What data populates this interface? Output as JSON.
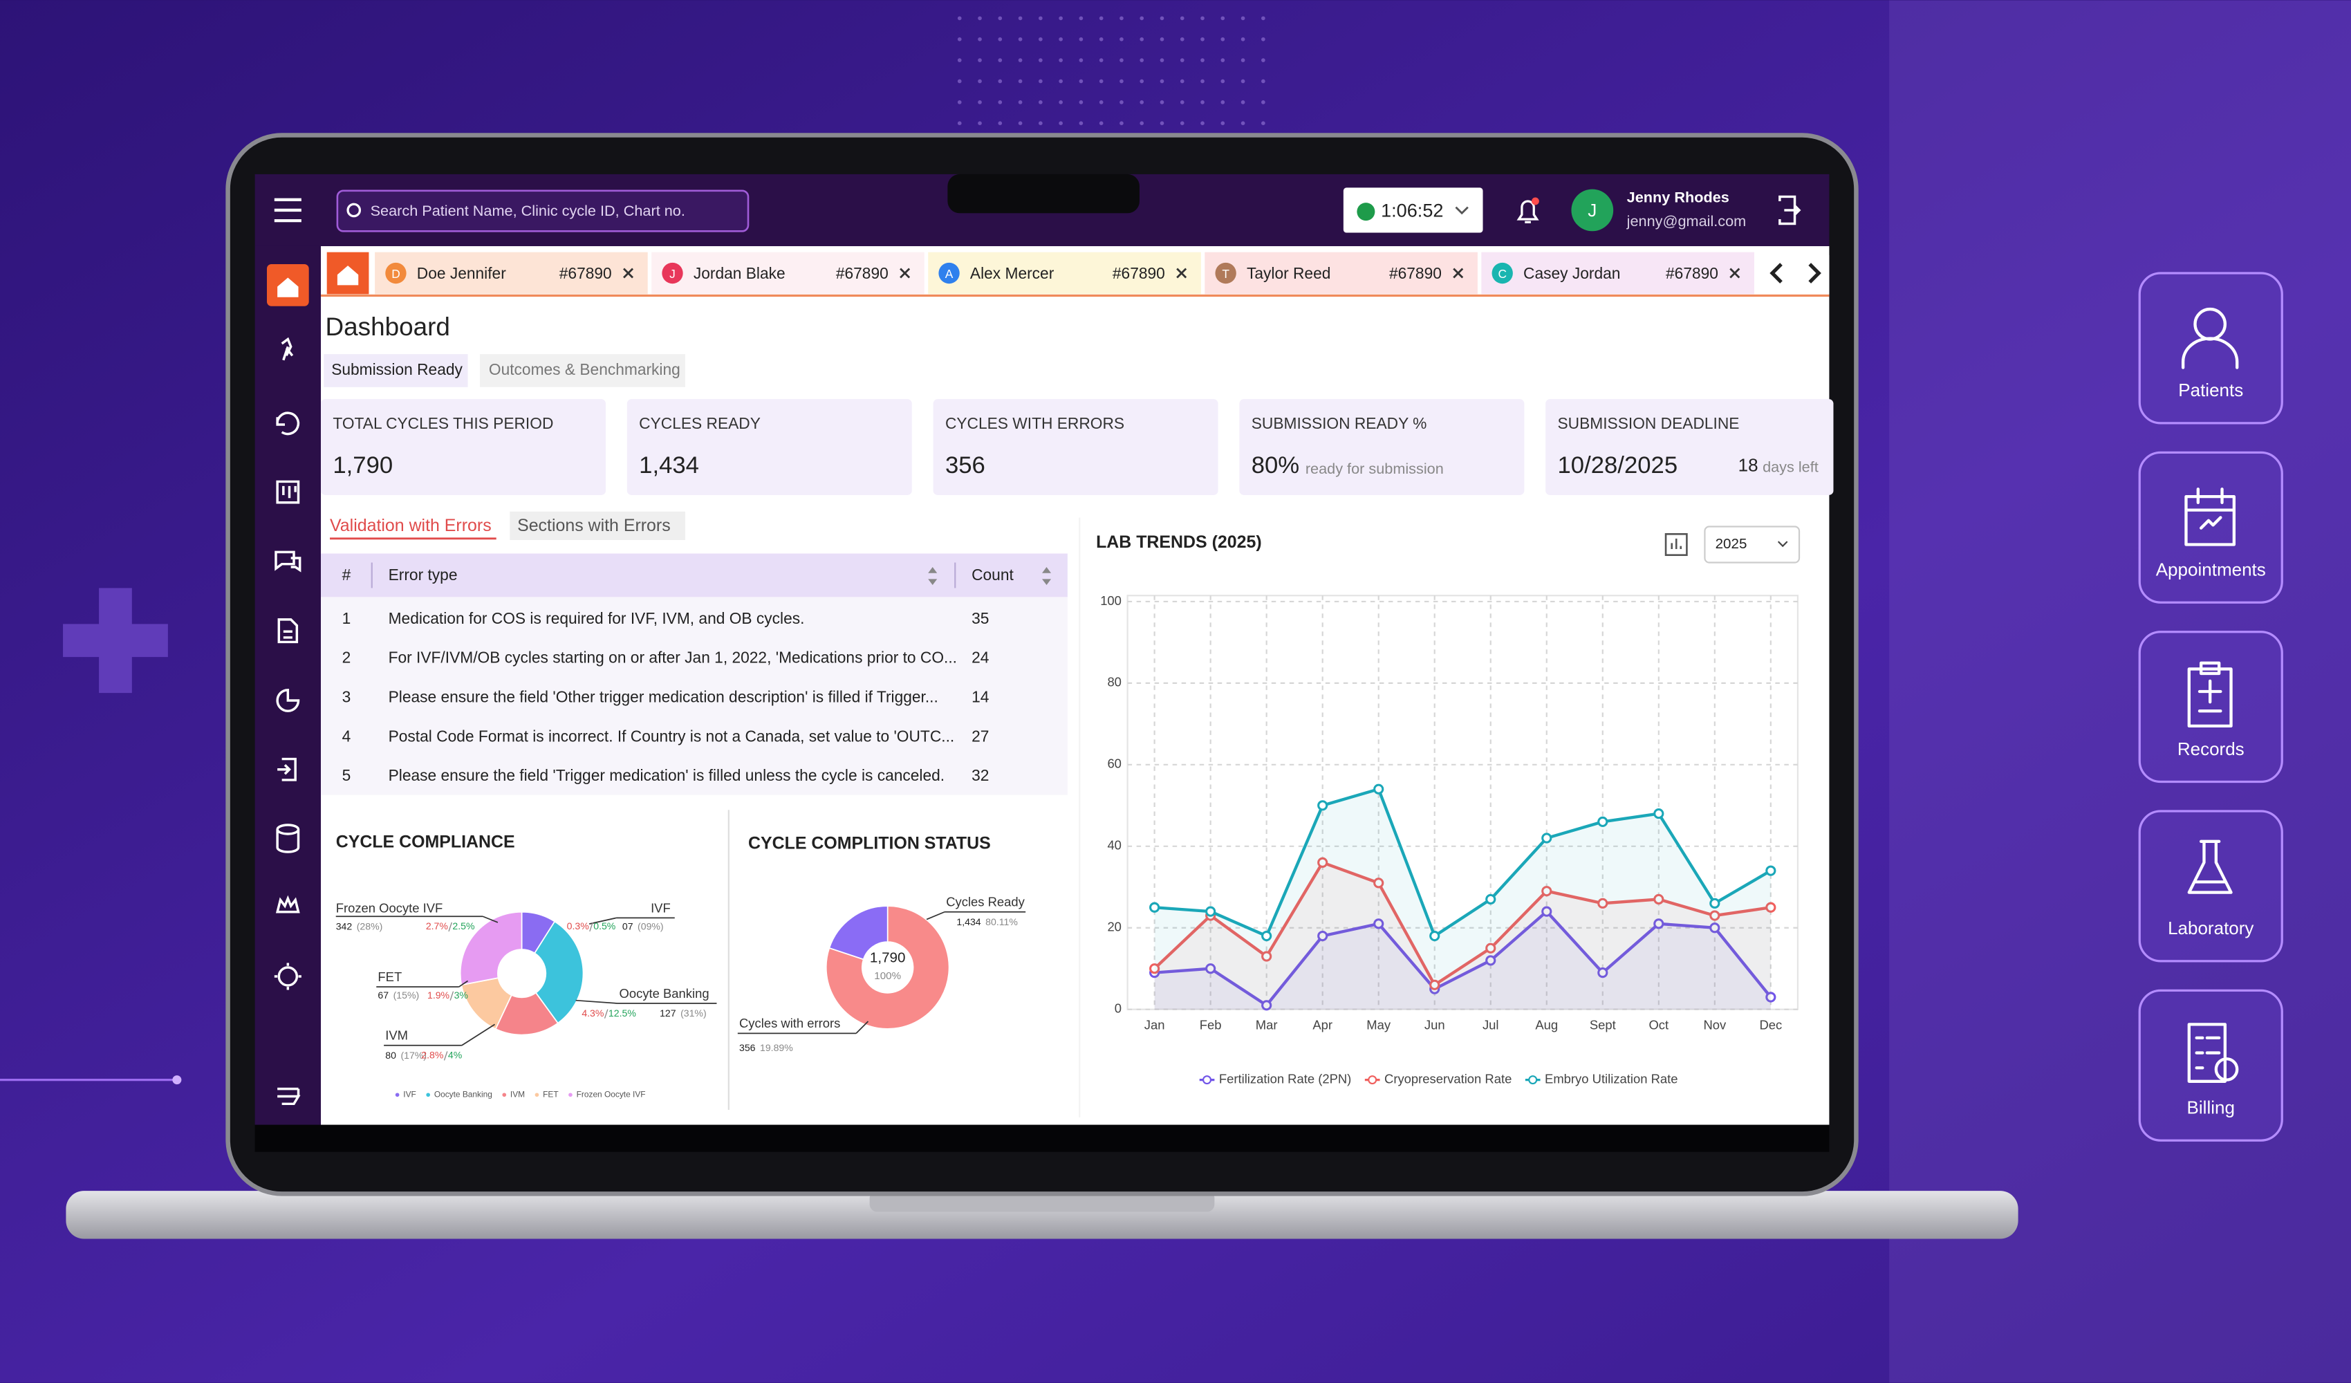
{
  "header": {
    "search_placeholder": "Search Patient Name, Clinic cycle ID, Chart no.",
    "timer": "1:06:52",
    "user_initial": "J",
    "user_name": "Jenny Rhodes",
    "user_email": "jenny@gmail.com"
  },
  "tabs": [
    {
      "initial": "D",
      "name": "Doe Jennifer",
      "id": "#67890",
      "color": "#f28a3c",
      "background": "#fde4d6"
    },
    {
      "initial": "J",
      "name": "Jordan Blake",
      "id": "#67890",
      "color": "#e8375a",
      "background": "#fdf0f3"
    },
    {
      "initial": "A",
      "name": "Alex Mercer",
      "id": "#67890",
      "color": "#2f80ed",
      "background": "#fdf6d8"
    },
    {
      "initial": "T",
      "name": "Taylor Reed",
      "id": "#67890",
      "color": "#b07a5a",
      "background": "#fde2e2"
    },
    {
      "initial": "C",
      "name": "Casey Jordan",
      "id": "#67890",
      "color": "#19b5b0",
      "background": "#f7e6f6"
    }
  ],
  "page_title": "Dashboard",
  "view_tabs": [
    "Submission Ready",
    "Outcomes & Benchmarking"
  ],
  "kpis": [
    {
      "label": "TOTAL CYCLES THIS PERIOD",
      "value": "1,790"
    },
    {
      "label": "CYCLES READY",
      "value": "1,434"
    },
    {
      "label": "CYCLES WITH ERRORS",
      "value": "356"
    },
    {
      "label": "SUBMISSION READY %",
      "value": "80%",
      "note": "ready for submission"
    },
    {
      "label": "SUBMISSION DEADLINE",
      "value": "10/28/2025",
      "days": "18",
      "note": "days left"
    }
  ],
  "error_tabs": [
    "Validation with Errors",
    "Sections with Errors"
  ],
  "table": {
    "columns": [
      "#",
      "Error type",
      "Count"
    ],
    "rows": [
      [
        1,
        "Medication for COS is required for IVF, IVM, and OB cycles.",
        35
      ],
      [
        2,
        "For IVF/IVM/OB cycles starting on or after Jan 1, 2022, 'Medications prior to CO...",
        24
      ],
      [
        3,
        "Please ensure the field 'Other trigger medication description' is filled if Trigger...",
        14
      ],
      [
        4,
        "Postal Code Format is incorrect. If Country is not a Canada, set value to 'OUTC...",
        27
      ],
      [
        5,
        "Please ensure the field 'Trigger medication' is filled unless the cycle is canceled.",
        32
      ]
    ]
  },
  "chart_data": [
    {
      "type": "line",
      "title": "LAB TRENDS (2025)",
      "year_select": "2025",
      "categories": [
        "Jan",
        "Feb",
        "Mar",
        "Apr",
        "May",
        "Jun",
        "Jul",
        "Aug",
        "Sept",
        "Oct",
        "Nov",
        "Dec"
      ],
      "ylim": [
        0,
        100
      ],
      "yticks": [
        0,
        20,
        40,
        60,
        80,
        100
      ],
      "grid": true,
      "series": [
        {
          "name": "Fertilization Rate (2PN)",
          "color": "#7155e8",
          "values": [
            9,
            10,
            1,
            18,
            21,
            5,
            12,
            24,
            9,
            21,
            20,
            3
          ]
        },
        {
          "name": "Cryopreservation Rate",
          "color": "#f0605e",
          "values": [
            10,
            23,
            13,
            36,
            31,
            6,
            15,
            29,
            26,
            27,
            23,
            25
          ]
        },
        {
          "name": "Embryo Utilization Rate",
          "color": "#1aa7b8",
          "values": [
            25,
            24,
            18,
            50,
            54,
            18,
            27,
            42,
            46,
            48,
            26,
            34
          ]
        }
      ]
    },
    {
      "type": "donut",
      "title": "CYCLE COMPLIANCE",
      "categories": [
        "IVF",
        "Oocyte Banking",
        "IVM",
        "FET",
        "Frozen Oocyte IVF"
      ],
      "values": [
        9,
        31,
        17,
        15,
        28
      ],
      "value_labels": [
        "(09%)",
        "(31%)",
        "(17%)",
        "(15%)",
        "(28%)"
      ],
      "count_labels": [
        "07",
        "127",
        "80",
        "67",
        "342"
      ],
      "changes": [
        [
          "0.3%",
          "0.5%"
        ],
        [
          "4.3%",
          "12.5%"
        ],
        [
          "2.8%",
          "4%"
        ],
        [
          "1.9%",
          "3%"
        ],
        [
          "2.7%",
          "2.5%"
        ]
      ],
      "colors": [
        "#8a6cf2",
        "#3cc3dc",
        "#f5848a",
        "#fcc9a0",
        "#e69bf2"
      ]
    },
    {
      "type": "donut",
      "title": "CYCLE COMPLITION STATUS",
      "categories": [
        "Cycles Ready",
        "Cycles with errors"
      ],
      "values": [
        80.11,
        19.89
      ],
      "value_labels": [
        "80.11%",
        "19.89%"
      ],
      "count_labels": [
        "1,434",
        "356"
      ],
      "center_label": "1,790",
      "center_note": "100%",
      "colors": [
        "#f88a8a",
        "#8a6cf5"
      ]
    }
  ],
  "side_menu": [
    "Patients",
    "Appointments",
    "Records",
    "Laboratory",
    "Billing"
  ]
}
